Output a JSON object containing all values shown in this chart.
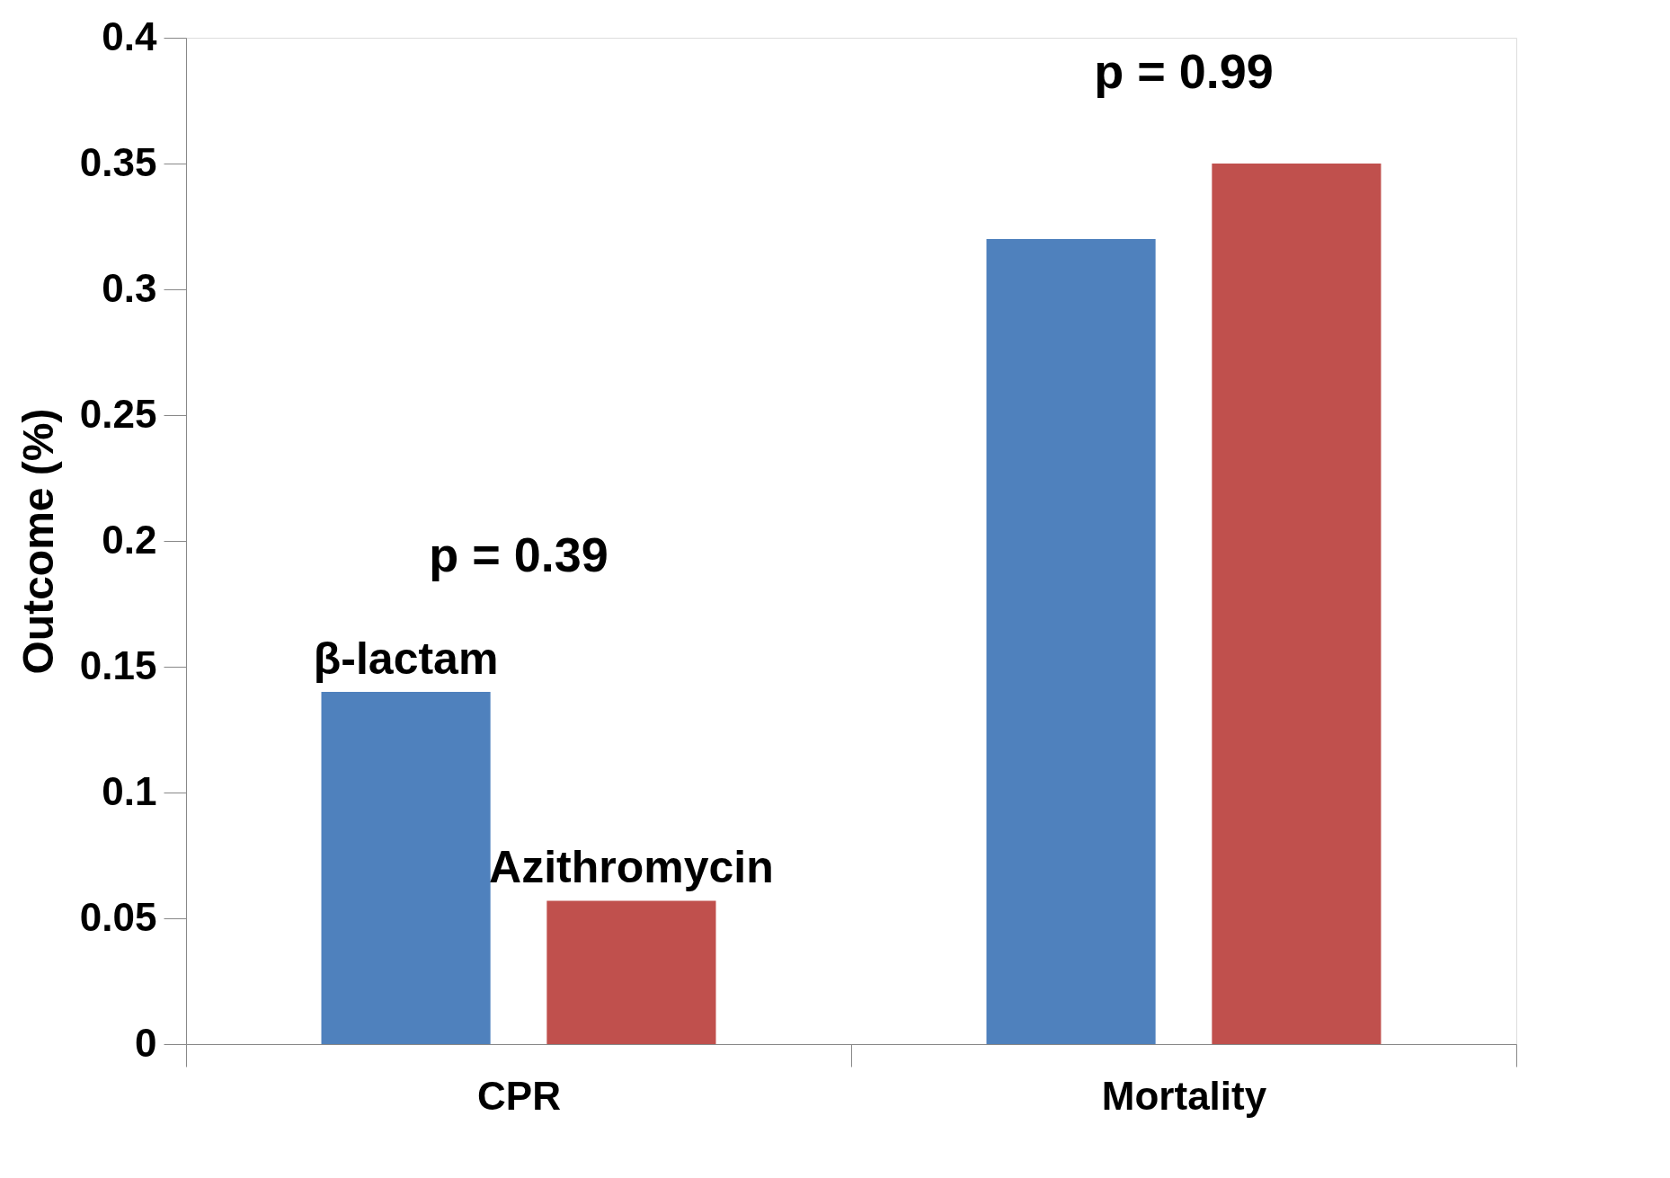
{
  "chart_data": {
    "type": "bar",
    "ylabel": "Outcome (%)",
    "categories": [
      "CPR",
      "Mortality"
    ],
    "series": [
      {
        "name": "β-lactam",
        "color": "#4f81bd",
        "values": [
          0.14,
          0.32
        ]
      },
      {
        "name": "Azithromycin",
        "color": "#c0504d",
        "values": [
          0.057,
          0.35
        ]
      }
    ],
    "ylim": [
      0,
      0.4
    ],
    "yticks": [
      0,
      0.05,
      0.1,
      0.15,
      0.2,
      0.25,
      0.3,
      0.35,
      0.4
    ],
    "grid": false,
    "legend": false,
    "annotations": [
      "p = 0.39",
      "p = 0.99"
    ]
  }
}
